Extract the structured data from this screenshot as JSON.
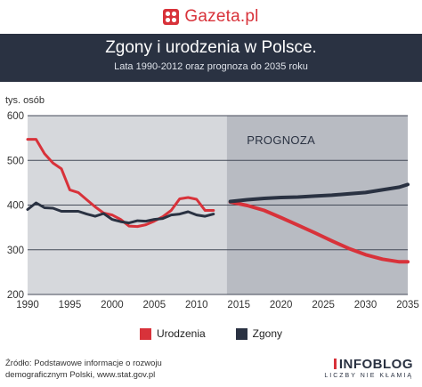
{
  "logo": {
    "text": "Gazeta.pl"
  },
  "header": {
    "title": "Zgony i urodzenia w Polsce.",
    "subtitle": "Lata 1990-2012 oraz prognoza do 2035 roku"
  },
  "colors": {
    "urodzenia": "#d8323a",
    "zgony": "#2a3242",
    "header_bg": "#2a3242",
    "history_bg": "#d6d8dc",
    "forecast_bg": "#b8bbc2"
  },
  "chart_data": {
    "type": "line",
    "ylabel": "tys. osób",
    "xlim": [
      1990,
      2035
    ],
    "ylim": [
      200,
      600
    ],
    "yticks": [
      200,
      300,
      400,
      500,
      600
    ],
    "xticks": [
      1990,
      1995,
      2000,
      2005,
      2010,
      2015,
      2020,
      2025,
      2030,
      2035
    ],
    "forecast_start": 2014,
    "forecast_label": "PROGNOZA",
    "grid": true,
    "legend_position": "bottom",
    "series": [
      {
        "name": "Urodzenia",
        "key": "urodzenia",
        "historical": {
          "x": [
            1990,
            1991,
            1992,
            1993,
            1994,
            1995,
            1996,
            1997,
            1998,
            1999,
            2000,
            2001,
            2002,
            2003,
            2004,
            2005,
            2006,
            2007,
            2008,
            2009,
            2010,
            2011,
            2012
          ],
          "y": [
            547,
            547,
            515,
            494,
            481,
            434,
            428,
            412,
            396,
            382,
            378,
            368,
            353,
            352,
            356,
            364,
            374,
            388,
            414,
            417,
            413,
            388,
            388
          ]
        },
        "forecast": {
          "x": [
            2014,
            2016,
            2018,
            2020,
            2022,
            2024,
            2026,
            2028,
            2030,
            2032,
            2034,
            2035
          ],
          "y": [
            407,
            399,
            388,
            372,
            355,
            338,
            320,
            303,
            289,
            279,
            273,
            273
          ]
        }
      },
      {
        "name": "Zgony",
        "key": "zgony",
        "historical": {
          "x": [
            1990,
            1991,
            1992,
            1993,
            1994,
            1995,
            1996,
            1997,
            1998,
            1999,
            2000,
            2001,
            2002,
            2003,
            2004,
            2005,
            2006,
            2007,
            2008,
            2009,
            2010,
            2011,
            2012
          ],
          "y": [
            390,
            405,
            394,
            393,
            386,
            386,
            386,
            380,
            375,
            381,
            368,
            363,
            360,
            365,
            364,
            368,
            370,
            378,
            380,
            385,
            378,
            375,
            380
          ]
        },
        "forecast": {
          "x": [
            2014,
            2016,
            2018,
            2020,
            2022,
            2024,
            2026,
            2028,
            2030,
            2032,
            2034,
            2035
          ],
          "y": [
            408,
            412,
            415,
            417,
            418,
            420,
            422,
            425,
            428,
            434,
            440,
            446
          ]
        }
      }
    ]
  },
  "legend": {
    "items": [
      {
        "label": "Urodzenia",
        "key": "urodzenia"
      },
      {
        "label": "Zgony",
        "key": "zgony"
      }
    ]
  },
  "footer": {
    "source_line1": "Źródło: Podstawowe informacje o rozwoju",
    "source_line2": "demograficznym Polski, www.stat.gov.pl",
    "brand_name": "INFOBLOG",
    "brand_tagline": "LICZBY NIE KŁAMIĄ"
  }
}
